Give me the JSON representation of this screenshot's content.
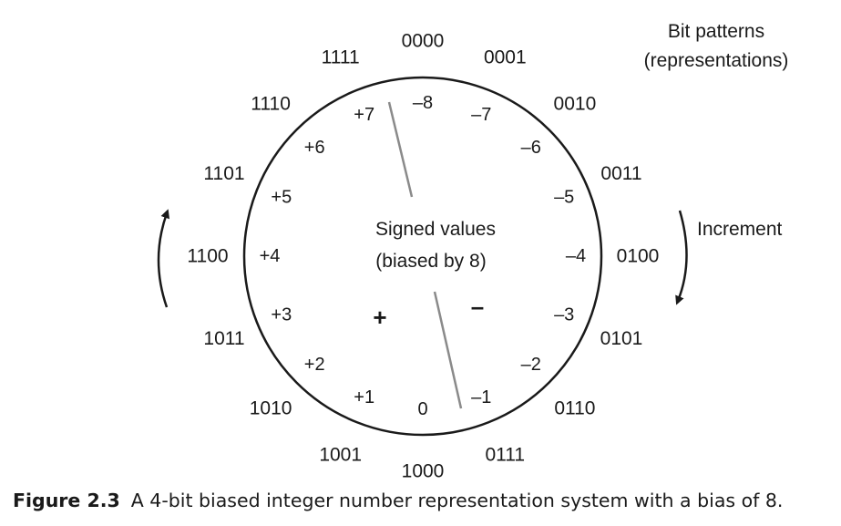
{
  "diagram": {
    "legend_bit_patterns": [
      "Bit patterns",
      "(representations)"
    ],
    "center_label": [
      "Signed values",
      "(biased by 8)"
    ],
    "increment_label": "Increment",
    "positive_sign": "+",
    "negative_sign": "–",
    "nodes": [
      {
        "bits": "0000",
        "value": "–8"
      },
      {
        "bits": "0001",
        "value": "–7"
      },
      {
        "bits": "0010",
        "value": "–6"
      },
      {
        "bits": "0011",
        "value": "–5"
      },
      {
        "bits": "0100",
        "value": "–4"
      },
      {
        "bits": "0101",
        "value": "–3"
      },
      {
        "bits": "0110",
        "value": "–2"
      },
      {
        "bits": "0111",
        "value": "–1"
      },
      {
        "bits": "1000",
        "value": "0"
      },
      {
        "bits": "1001",
        "value": "+1"
      },
      {
        "bits": "1010",
        "value": "+2"
      },
      {
        "bits": "1011",
        "value": "+3"
      },
      {
        "bits": "1100",
        "value": "+4"
      },
      {
        "bits": "1101",
        "value": "+5"
      },
      {
        "bits": "1110",
        "value": "+6"
      },
      {
        "bits": "1111",
        "value": "+7"
      }
    ]
  },
  "caption": {
    "label": "Figure 2.3",
    "text": "A 4-bit biased integer number representation system with a bias of 8."
  }
}
